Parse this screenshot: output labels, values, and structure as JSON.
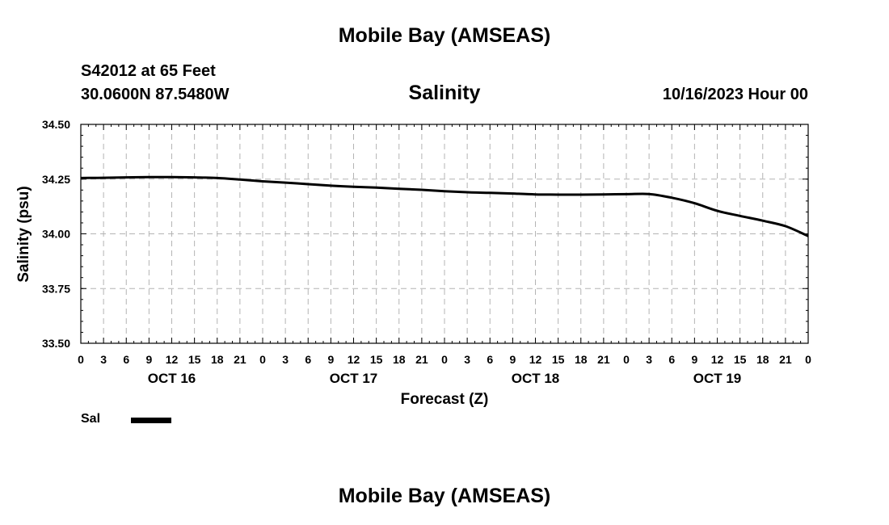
{
  "header": {
    "title": "Mobile Bay (AMSEAS)",
    "station": "S42012 at 65 Feet",
    "coords": "30.0600N  87.5480W",
    "chart_title": "Salinity",
    "datetime": "10/16/2023 Hour 00"
  },
  "footer": {
    "title": "Mobile Bay (AMSEAS)"
  },
  "legend": {
    "label": "Sal"
  },
  "chart_data": {
    "type": "line",
    "title": "Salinity",
    "xlabel": "Forecast (Z)",
    "ylabel": "Salinity (psu)",
    "xlim": [
      0,
      96
    ],
    "ylim": [
      33.5,
      34.5
    ],
    "yticks": [
      "33.50",
      "33.75",
      "34.00",
      "34.25",
      "34.50"
    ],
    "ytick_values": [
      33.5,
      33.75,
      34.0,
      34.25,
      34.5
    ],
    "xticks": [
      "0",
      "3",
      "6",
      "9",
      "12",
      "15",
      "18",
      "21",
      "0",
      "3",
      "6",
      "9",
      "12",
      "15",
      "18",
      "21",
      "0",
      "3",
      "6",
      "9",
      "12",
      "15",
      "18",
      "21",
      "0",
      "3",
      "6",
      "9",
      "12",
      "15",
      "18",
      "21",
      "0"
    ],
    "day_labels": [
      {
        "label": "OCT 16",
        "hour": 12
      },
      {
        "label": "OCT 17",
        "hour": 36
      },
      {
        "label": "OCT 18",
        "hour": 60
      },
      {
        "label": "OCT 19",
        "hour": 84
      }
    ],
    "grid": true,
    "series": [
      {
        "name": "Sal",
        "color": "#000000",
        "x": [
          0,
          3,
          6,
          9,
          12,
          15,
          18,
          21,
          24,
          27,
          30,
          33,
          36,
          39,
          42,
          45,
          48,
          51,
          54,
          57,
          60,
          63,
          66,
          69,
          72,
          75,
          78,
          81,
          84,
          87,
          90,
          93,
          96
        ],
        "values": [
          34.255,
          34.256,
          34.258,
          34.259,
          34.259,
          34.258,
          34.255,
          34.248,
          34.24,
          34.234,
          34.227,
          34.22,
          34.215,
          34.211,
          34.206,
          34.201,
          34.195,
          34.19,
          34.187,
          34.184,
          34.18,
          34.179,
          34.179,
          34.18,
          34.181,
          34.182,
          34.165,
          34.14,
          34.105,
          34.082,
          34.06,
          34.035,
          33.99
        ]
      }
    ]
  }
}
